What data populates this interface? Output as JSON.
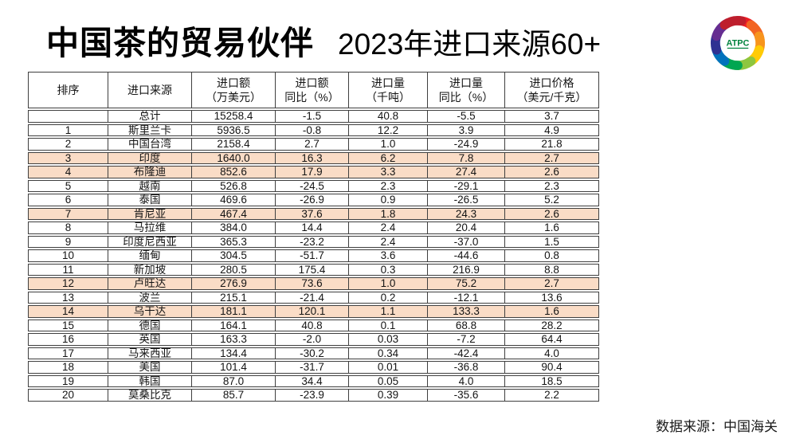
{
  "title": {
    "main": "中国茶的贸易伙伴",
    "subtitle": "2023年进口来源60+"
  },
  "logo": {
    "text": "ATPC",
    "text_color": "#00833e",
    "swirl_colors": [
      "#ed1c24",
      "#f26522",
      "#f7941d",
      "#ffcb05",
      "#8dc63f",
      "#00a651",
      "#0072bc",
      "#2e3192",
      "#662d91",
      "#be1e2d"
    ]
  },
  "source_note": "数据来源：中国海关",
  "colors": {
    "highlight_row": "#fadcc6",
    "table_border": "#3f3f3f"
  },
  "table": {
    "headers": [
      "排序",
      "进口来源",
      "进口额\n（万美元）",
      "进口额\n同比（%）",
      "进口量\n（千吨）",
      "进口量\n同比（%）",
      "进口价格\n（美元/千克）"
    ],
    "rows": [
      {
        "rank": "",
        "source": "总计",
        "value": "15258.4",
        "value_yoy": "-1.5",
        "volume": "40.8",
        "volume_yoy": "-5.5",
        "price": "3.7",
        "highlight": false
      },
      {
        "rank": "1",
        "source": "斯里兰卡",
        "value": "5936.5",
        "value_yoy": "-0.8",
        "volume": "12.2",
        "volume_yoy": "3.9",
        "price": "4.9",
        "highlight": false
      },
      {
        "rank": "2",
        "source": "中国台湾",
        "value": "2158.4",
        "value_yoy": "2.7",
        "volume": "1.0",
        "volume_yoy": "-24.9",
        "price": "21.8",
        "highlight": false
      },
      {
        "rank": "3",
        "source": "印度",
        "value": "1640.0",
        "value_yoy": "16.3",
        "volume": "6.2",
        "volume_yoy": "7.8",
        "price": "2.7",
        "highlight": true
      },
      {
        "rank": "4",
        "source": "布隆迪",
        "value": "852.6",
        "value_yoy": "17.9",
        "volume": "3.3",
        "volume_yoy": "27.4",
        "price": "2.6",
        "highlight": true
      },
      {
        "rank": "5",
        "source": "越南",
        "value": "526.8",
        "value_yoy": "-24.5",
        "volume": "2.3",
        "volume_yoy": "-29.1",
        "price": "2.3",
        "highlight": false
      },
      {
        "rank": "6",
        "source": "泰国",
        "value": "469.6",
        "value_yoy": "-26.9",
        "volume": "0.9",
        "volume_yoy": "-26.5",
        "price": "5.2",
        "highlight": false
      },
      {
        "rank": "7",
        "source": "肯尼亚",
        "value": "467.4",
        "value_yoy": "37.6",
        "volume": "1.8",
        "volume_yoy": "24.3",
        "price": "2.6",
        "highlight": true
      },
      {
        "rank": "8",
        "source": "马拉维",
        "value": "384.0",
        "value_yoy": "14.4",
        "volume": "2.4",
        "volume_yoy": "20.4",
        "price": "1.6",
        "highlight": false
      },
      {
        "rank": "9",
        "source": "印度尼西亚",
        "value": "365.3",
        "value_yoy": "-23.2",
        "volume": "2.4",
        "volume_yoy": "-37.0",
        "price": "1.5",
        "highlight": false
      },
      {
        "rank": "10",
        "source": "缅甸",
        "value": "304.5",
        "value_yoy": "-51.7",
        "volume": "3.6",
        "volume_yoy": "-44.6",
        "price": "0.8",
        "highlight": false
      },
      {
        "rank": "11",
        "source": "新加坡",
        "value": "280.5",
        "value_yoy": "175.4",
        "volume": "0.3",
        "volume_yoy": "216.9",
        "price": "8.8",
        "highlight": false
      },
      {
        "rank": "12",
        "source": "卢旺达",
        "value": "276.9",
        "value_yoy": "73.6",
        "volume": "1.0",
        "volume_yoy": "75.2",
        "price": "2.7",
        "highlight": true
      },
      {
        "rank": "13",
        "source": "波兰",
        "value": "215.1",
        "value_yoy": "-21.4",
        "volume": "0.2",
        "volume_yoy": "-12.1",
        "price": "13.6",
        "highlight": false
      },
      {
        "rank": "14",
        "source": "乌干达",
        "value": "181.1",
        "value_yoy": "120.1",
        "volume": "1.1",
        "volume_yoy": "133.3",
        "price": "1.6",
        "highlight": true
      },
      {
        "rank": "15",
        "source": "德国",
        "value": "164.1",
        "value_yoy": "40.8",
        "volume": "0.1",
        "volume_yoy": "68.8",
        "price": "28.2",
        "highlight": false
      },
      {
        "rank": "16",
        "source": "英国",
        "value": "163.3",
        "value_yoy": "-2.0",
        "volume": "0.03",
        "volume_yoy": "-7.2",
        "price": "64.4",
        "highlight": false
      },
      {
        "rank": "17",
        "source": "马来西亚",
        "value": "134.4",
        "value_yoy": "-30.2",
        "volume": "0.34",
        "volume_yoy": "-42.4",
        "price": "4.0",
        "highlight": false
      },
      {
        "rank": "18",
        "source": "美国",
        "value": "101.4",
        "value_yoy": "-31.7",
        "volume": "0.01",
        "volume_yoy": "-36.8",
        "price": "90.4",
        "highlight": false
      },
      {
        "rank": "19",
        "source": "韩国",
        "value": "87.0",
        "value_yoy": "34.4",
        "volume": "0.05",
        "volume_yoy": "4.0",
        "price": "18.5",
        "highlight": false
      },
      {
        "rank": "20",
        "source": "莫桑比克",
        "value": "85.7",
        "value_yoy": "-23.9",
        "volume": "0.39",
        "volume_yoy": "-35.6",
        "price": "2.2",
        "highlight": false
      }
    ]
  }
}
